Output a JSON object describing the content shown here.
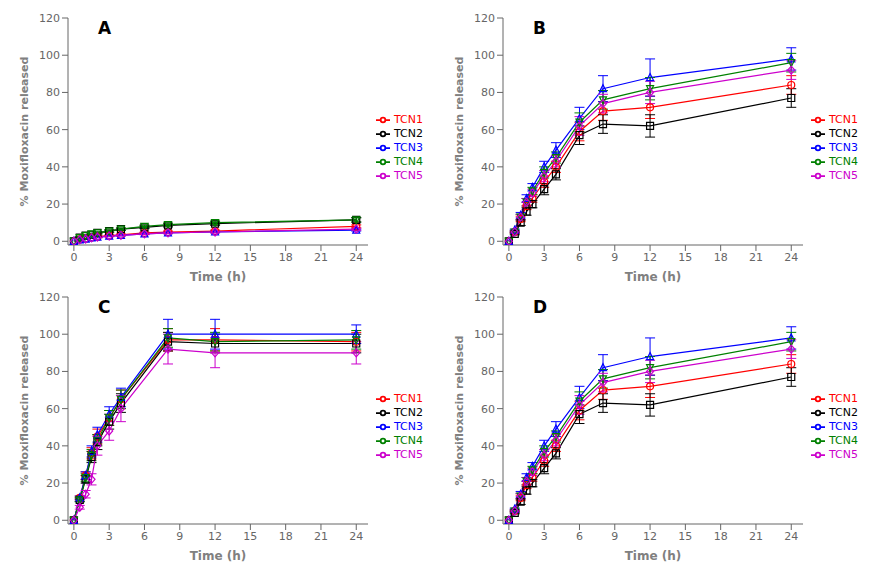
{
  "chart_data": [
    {
      "type": "line",
      "title": "A",
      "x_label": "Time (h)",
      "y_label": "% Moxifloxacin released",
      "x": [
        0,
        0.5,
        1,
        1.5,
        2,
        3,
        4,
        6,
        8,
        12,
        24
      ],
      "series": [
        {
          "name": "TCN1",
          "color": "#ff0000",
          "marker": "circle",
          "values": [
            0,
            1.0,
            1.5,
            2.0,
            2.5,
            3.0,
            3.5,
            4.5,
            5.0,
            5.5,
            8.0
          ],
          "errors": [
            0,
            0.2,
            0.2,
            0.3,
            0.3,
            0.3,
            0.4,
            0.4,
            0.5,
            0.5,
            0.8
          ]
        },
        {
          "name": "TCN2",
          "color": "#000000",
          "marker": "square",
          "values": [
            0,
            2.0,
            3.0,
            3.5,
            4.5,
            5.5,
            6.5,
            7.5,
            8.5,
            9.5,
            11.5
          ],
          "errors": [
            0,
            0.3,
            0.4,
            0.4,
            0.5,
            0.6,
            0.6,
            0.7,
            0.8,
            0.9,
            1.2
          ]
        },
        {
          "name": "TCN3",
          "color": "#0000ff",
          "marker": "triangle-up",
          "values": [
            0,
            0.8,
            1.2,
            1.8,
            2.2,
            2.8,
            3.2,
            4.0,
            4.5,
            5.0,
            6.0
          ],
          "errors": [
            0,
            0.2,
            0.2,
            0.3,
            0.3,
            0.3,
            0.3,
            0.4,
            0.4,
            0.4,
            0.5
          ]
        },
        {
          "name": "TCN4",
          "color": "#008000",
          "marker": "triangle-down",
          "values": [
            0,
            2.0,
            3.0,
            4.0,
            4.5,
            5.5,
            6.5,
            8.0,
            9.0,
            10.0,
            11.5
          ],
          "errors": [
            0,
            0.3,
            0.4,
            0.4,
            0.5,
            0.5,
            0.6,
            0.7,
            0.8,
            0.9,
            1.1
          ]
        },
        {
          "name": "TCN5",
          "color": "#cc00cc",
          "marker": "diamond",
          "values": [
            0,
            0.8,
            1.2,
            1.8,
            2.2,
            2.8,
            3.2,
            4.0,
            4.5,
            5.0,
            6.5
          ],
          "errors": [
            0,
            0.2,
            0.2,
            0.3,
            0.3,
            0.3,
            0.3,
            0.4,
            0.4,
            0.5,
            0.6
          ]
        }
      ],
      "xlim": [
        -0.5,
        25
      ],
      "ylim": [
        -2,
        120
      ],
      "xticks": [
        0,
        3,
        6,
        9,
        12,
        15,
        18,
        21,
        24
      ],
      "yticks": [
        0,
        20,
        40,
        60,
        80,
        100,
        120
      ],
      "grid": false,
      "legend": "right"
    },
    {
      "type": "line",
      "title": "B",
      "x_label": "Time (h)",
      "y_label": "% Moxifloxacin released",
      "x": [
        0,
        0.5,
        1,
        1.5,
        2,
        3,
        4,
        6,
        8,
        12,
        24
      ],
      "series": [
        {
          "name": "TCN1",
          "color": "#ff0000",
          "marker": "circle",
          "values": [
            0,
            5,
            12,
            19,
            23,
            32,
            40,
            59,
            70,
            72,
            84
          ],
          "errors": [
            0,
            0.5,
            1.5,
            2,
            2,
            3,
            3,
            5,
            5,
            6,
            5
          ]
        },
        {
          "name": "TCN2",
          "color": "#000000",
          "marker": "square",
          "values": [
            0,
            4,
            10,
            16,
            20,
            28,
            36,
            57,
            63,
            62,
            77
          ],
          "errors": [
            0,
            0.5,
            1.5,
            2,
            2,
            3,
            3,
            5,
            5,
            6,
            5
          ]
        },
        {
          "name": "TCN3",
          "color": "#0000ff",
          "marker": "triangle-up",
          "values": [
            0,
            6,
            14,
            23,
            29,
            40,
            49,
            66,
            82,
            88,
            98
          ],
          "errors": [
            0,
            0.5,
            1.5,
            2,
            2,
            3,
            4,
            6,
            7,
            10,
            6
          ]
        },
        {
          "name": "TCN4",
          "color": "#008000",
          "marker": "triangle-down",
          "values": [
            0,
            5,
            13,
            21,
            27,
            37,
            45,
            64,
            76,
            82,
            96
          ],
          "errors": [
            0,
            0.5,
            1.5,
            2,
            2,
            3,
            3,
            5,
            5,
            6,
            5
          ]
        },
        {
          "name": "TCN5",
          "color": "#cc00cc",
          "marker": "diamond",
          "values": [
            0,
            5,
            13,
            21,
            26,
            35,
            43,
            62,
            74,
            80,
            92
          ],
          "errors": [
            0,
            0.5,
            1.5,
            2,
            2,
            3,
            3,
            5,
            5,
            6,
            5
          ]
        }
      ],
      "xlim": [
        -0.5,
        25
      ],
      "ylim": [
        -2,
        120
      ],
      "xticks": [
        0,
        3,
        6,
        9,
        12,
        15,
        18,
        21,
        24
      ],
      "yticks": [
        0,
        20,
        40,
        60,
        80,
        100,
        120
      ],
      "grid": false,
      "legend": "right"
    },
    {
      "type": "line",
      "title": "C",
      "x_label": "Time (h)",
      "y_label": "% Moxifloxacin released",
      "x": [
        0,
        0.5,
        1,
        1.5,
        2,
        3,
        4,
        8,
        12,
        24
      ],
      "series": [
        {
          "name": "TCN1",
          "color": "#ff0000",
          "marker": "circle",
          "values": [
            0,
            12,
            24,
            36,
            45,
            55,
            65,
            97,
            97,
            96
          ],
          "errors": [
            0,
            1,
            2,
            3,
            4,
            4,
            5,
            6,
            6,
            5
          ]
        },
        {
          "name": "TCN2",
          "color": "#000000",
          "marker": "square",
          "values": [
            0,
            11,
            22,
            34,
            42,
            53,
            63,
            96,
            95,
            95
          ],
          "errors": [
            0,
            1,
            2,
            3,
            4,
            4,
            5,
            5,
            5,
            5
          ]
        },
        {
          "name": "TCN3",
          "color": "#0000ff",
          "marker": "triangle-up",
          "values": [
            0,
            12,
            24,
            37,
            46,
            57,
            66,
            100,
            100,
            100
          ],
          "errors": [
            0,
            1,
            2,
            3,
            4,
            4,
            5,
            8,
            8,
            5
          ]
        },
        {
          "name": "TCN4",
          "color": "#008000",
          "marker": "triangle-down",
          "values": [
            0,
            11,
            23,
            35,
            43,
            55,
            65,
            98,
            96,
            97
          ],
          "errors": [
            0,
            1,
            2,
            3,
            3,
            4,
            5,
            5,
            5,
            5
          ]
        },
        {
          "name": "TCN5",
          "color": "#cc00cc",
          "marker": "diamond",
          "values": [
            0,
            7,
            14,
            22,
            40,
            48,
            60,
            92,
            90,
            90
          ],
          "errors": [
            0,
            1,
            2,
            3,
            5,
            5,
            7,
            8,
            8,
            6
          ]
        }
      ],
      "xlim": [
        -0.5,
        25
      ],
      "ylim": [
        -2,
        120
      ],
      "xticks": [
        0,
        3,
        6,
        9,
        12,
        15,
        18,
        21,
        24
      ],
      "yticks": [
        0,
        20,
        40,
        60,
        80,
        100,
        120
      ],
      "grid": false,
      "legend": "right"
    },
    {
      "type": "line",
      "title": "D",
      "x_label": "Time (h)",
      "y_label": "% Moxifloxacin released",
      "x": [
        0,
        0.5,
        1,
        1.5,
        2,
        3,
        4,
        6,
        8,
        12,
        24
      ],
      "series": [
        {
          "name": "TCN1",
          "color": "#ff0000",
          "marker": "circle",
          "values": [
            0,
            5,
            12,
            19,
            23,
            32,
            40,
            59,
            70,
            72,
            84
          ],
          "errors": [
            0,
            0.5,
            1.5,
            2,
            2,
            3,
            3,
            5,
            5,
            6,
            5
          ]
        },
        {
          "name": "TCN2",
          "color": "#000000",
          "marker": "square",
          "values": [
            0,
            4,
            10,
            16,
            20,
            28,
            36,
            57,
            63,
            62,
            77
          ],
          "errors": [
            0,
            0.5,
            1.5,
            2,
            2,
            3,
            3,
            5,
            5,
            6,
            5
          ]
        },
        {
          "name": "TCN3",
          "color": "#0000ff",
          "marker": "triangle-up",
          "values": [
            0,
            6,
            14,
            23,
            29,
            40,
            49,
            66,
            82,
            88,
            98
          ],
          "errors": [
            0,
            0.5,
            1.5,
            2,
            2,
            3,
            4,
            6,
            7,
            10,
            6
          ]
        },
        {
          "name": "TCN4",
          "color": "#008000",
          "marker": "triangle-down",
          "values": [
            0,
            5,
            13,
            21,
            27,
            37,
            45,
            64,
            76,
            82,
            96
          ],
          "errors": [
            0,
            0.5,
            1.5,
            2,
            2,
            3,
            3,
            5,
            5,
            6,
            5
          ]
        },
        {
          "name": "TCN5",
          "color": "#cc00cc",
          "marker": "diamond",
          "values": [
            0,
            5,
            13,
            21,
            26,
            35,
            43,
            62,
            74,
            80,
            92
          ],
          "errors": [
            0,
            0.5,
            1.5,
            2,
            2,
            3,
            3,
            5,
            5,
            6,
            5
          ]
        }
      ],
      "xlim": [
        -0.5,
        25
      ],
      "ylim": [
        -2,
        120
      ],
      "xticks": [
        0,
        3,
        6,
        9,
        12,
        15,
        18,
        21,
        24
      ],
      "yticks": [
        0,
        20,
        40,
        60,
        80,
        100,
        120
      ],
      "grid": false,
      "legend": "right"
    }
  ]
}
